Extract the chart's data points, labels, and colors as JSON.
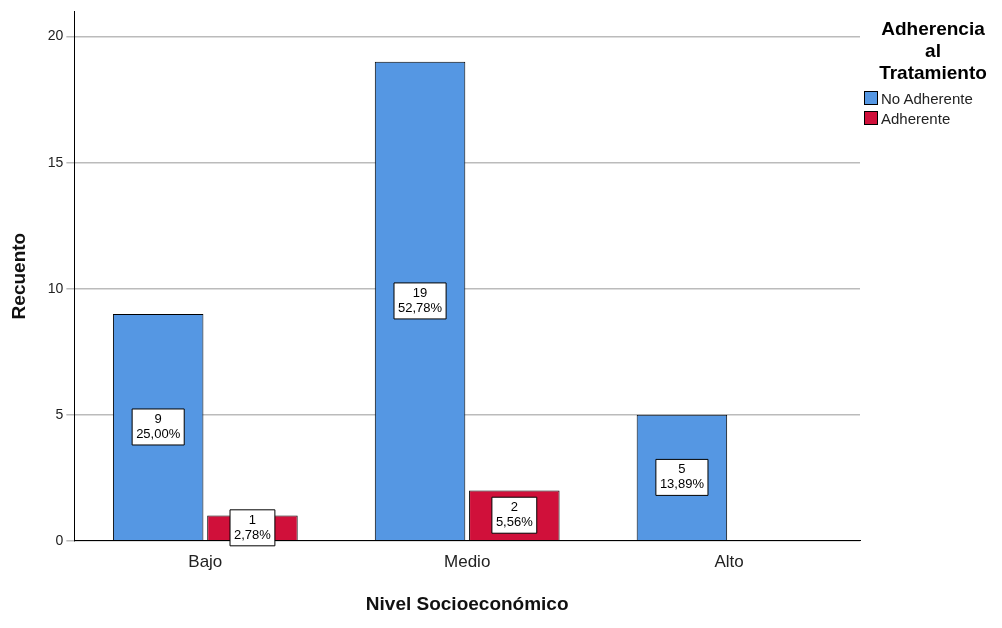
{
  "chart_data": {
    "type": "bar",
    "xlabel": "Nivel Socioeconómico",
    "ylabel": "Recuento",
    "legend_title": "Adherencia\nal\nTratamiento",
    "categories": [
      "Bajo",
      "Medio",
      "Alto"
    ],
    "series": [
      {
        "name": "No Adherente",
        "color": "#5597e3",
        "values": [
          9,
          19,
          5
        ],
        "value_labels": [
          "9\n25,00%",
          "19\n52,78%",
          "5\n13,89%"
        ]
      },
      {
        "name": "Adherente",
        "color": "#d0103a",
        "values": [
          1,
          2,
          null
        ],
        "value_labels": [
          "1\n2,78%",
          "2\n5,56%",
          null
        ]
      }
    ],
    "ylim": [
      0,
      21
    ],
    "yticks": [
      0,
      5,
      10,
      15,
      20
    ],
    "grid": "y",
    "legend": "top right"
  }
}
